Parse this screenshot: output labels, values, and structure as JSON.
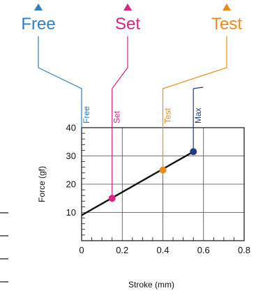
{
  "chart_data": {
    "type": "line",
    "xlabel": "Stroke (mm)",
    "ylabel": "Force (gf)",
    "xlim": [
      0,
      0.8
    ],
    "ylim": [
      0,
      40
    ],
    "x_ticks": [
      "0",
      "0.2",
      "0.4",
      "0.6",
      "0.8"
    ],
    "y_ticks": [
      "10",
      "20",
      "30",
      "40"
    ],
    "grid": true,
    "series": [
      {
        "name": "",
        "x": [
          0,
          0.55
        ],
        "y": [
          9,
          31.5
        ],
        "color": "#111111"
      }
    ],
    "points": [
      {
        "label": "Set",
        "x": 0.15,
        "y": 15,
        "color": "#d6267f"
      },
      {
        "label": "Test",
        "x": 0.4,
        "y": 25,
        "color": "#ee8a1a"
      },
      {
        "label": "Max",
        "x": 0.55,
        "y": 31.5,
        "color": "#1e3a8a"
      }
    ],
    "markers": [
      {
        "label": "Free",
        "x": 0,
        "color": "#2f7fc1"
      },
      {
        "label": "Set",
        "x": 0.15,
        "color": "#d6267f"
      },
      {
        "label": "Test",
        "x": 0.4,
        "color": "#ee8a1a"
      },
      {
        "label": "Max",
        "x": 0.55,
        "color": "#1e3a8a"
      }
    ],
    "callouts": [
      {
        "label": "Free",
        "color": "#2f7fc1"
      },
      {
        "label": "Set",
        "color": "#d6267f"
      },
      {
        "label": "Test",
        "color": "#ee8a1a"
      }
    ]
  }
}
